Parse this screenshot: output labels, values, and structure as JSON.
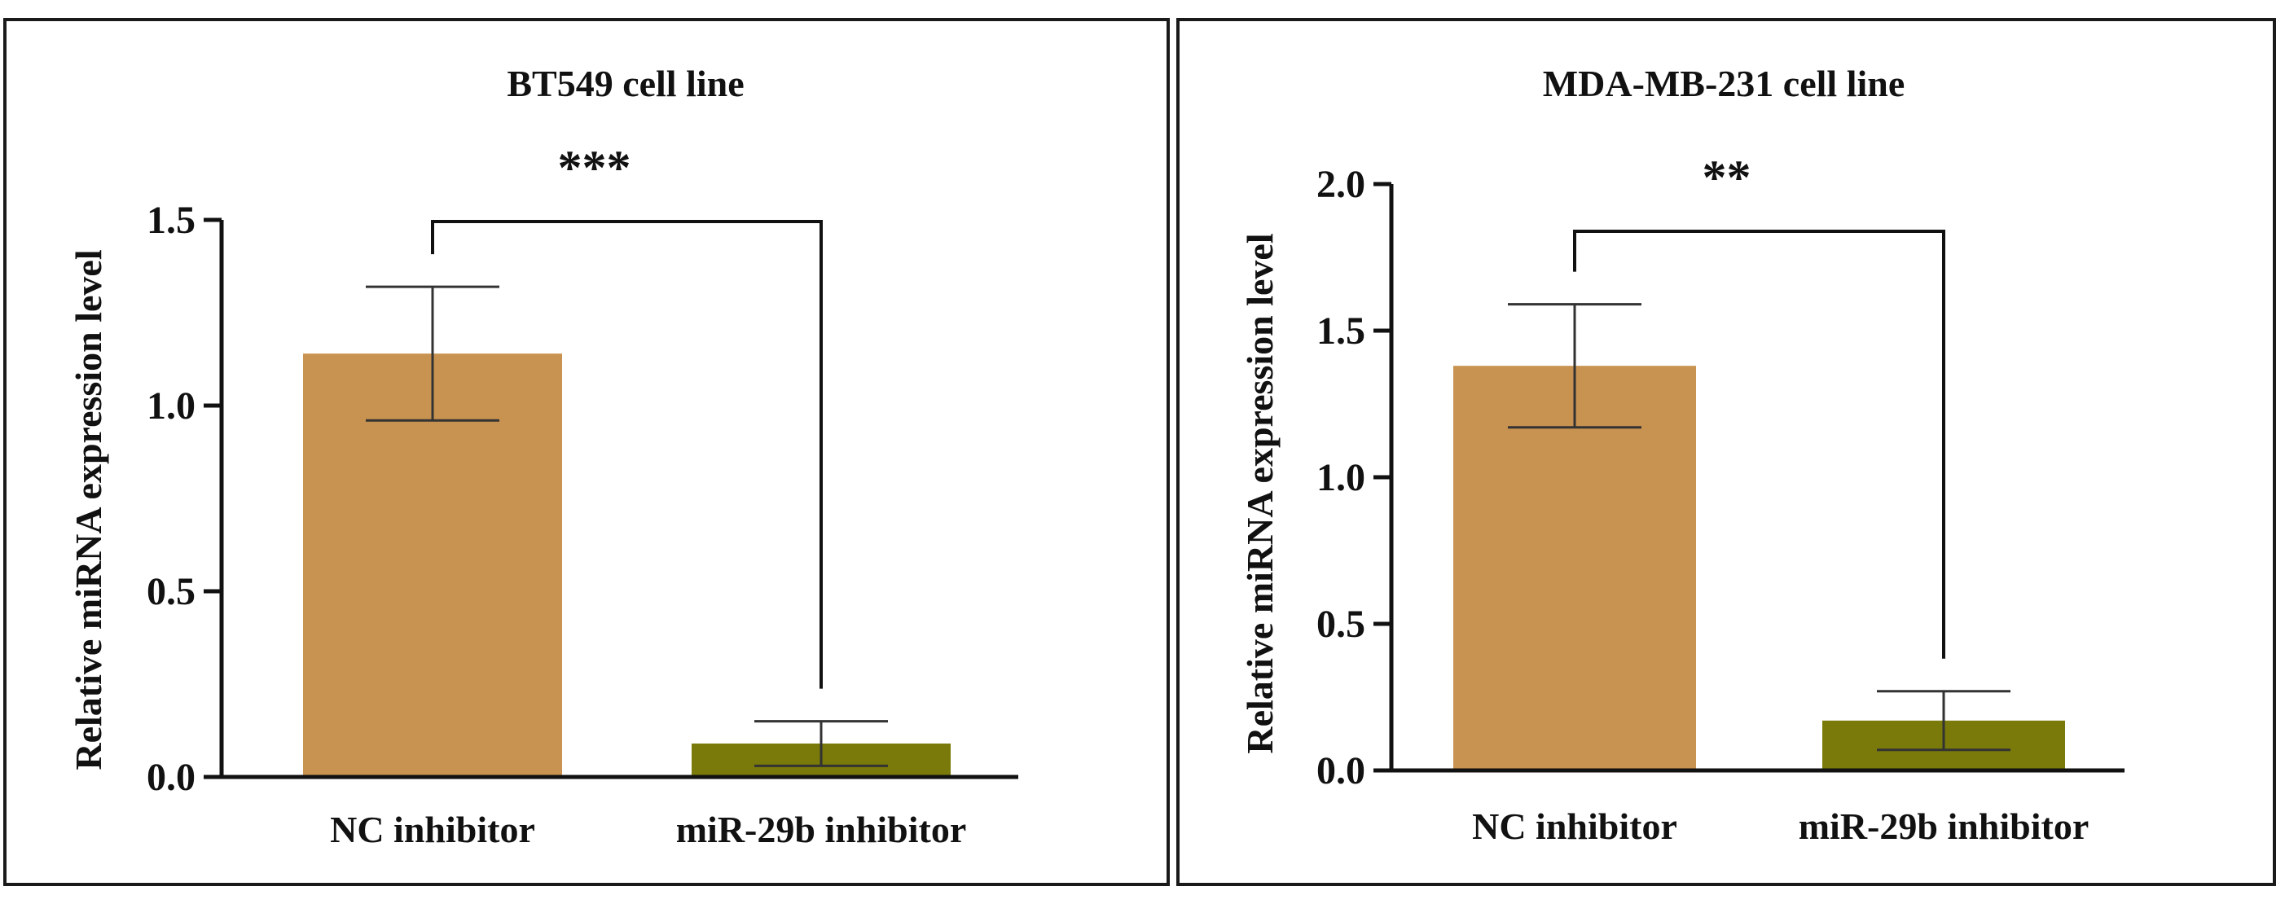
{
  "chart_data": [
    {
      "type": "bar",
      "title": "BT549 cell line",
      "ylabel": "Relative miRNA expression level",
      "xlabel": "",
      "categories": [
        "NC inhibitor",
        "miR-29b inhibitor"
      ],
      "values": [
        1.14,
        0.09
      ],
      "errors": [
        [
          0.96,
          1.32
        ],
        [
          0.03,
          0.15
        ]
      ],
      "colors": [
        "#c89350",
        "#7a7a0a"
      ],
      "ylim": [
        0,
        1.5
      ],
      "yticks": [
        0.0,
        0.5,
        1.0,
        1.5
      ],
      "ytick_labels": [
        "0.0",
        "0.5",
        "1.0",
        "1.5"
      ],
      "significance": "***"
    },
    {
      "type": "bar",
      "title": "MDA-MB-231 cell line",
      "ylabel": "Relative miRNA expression level",
      "xlabel": "",
      "categories": [
        "NC inhibitor",
        "miR-29b inhibitor"
      ],
      "values": [
        1.38,
        0.17
      ],
      "errors": [
        [
          1.17,
          1.59
        ],
        [
          0.07,
          0.27
        ]
      ],
      "colors": [
        "#c89350",
        "#7a7a0a"
      ],
      "ylim": [
        0,
        2.0
      ],
      "yticks": [
        0.0,
        0.5,
        1.0,
        1.5,
        2.0
      ],
      "ytick_labels": [
        "0.0",
        "0.5",
        "1.0",
        "1.5",
        "2.0"
      ],
      "significance": "**"
    }
  ]
}
